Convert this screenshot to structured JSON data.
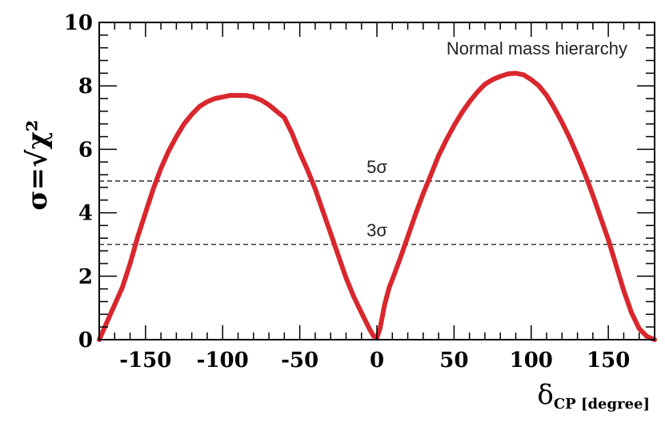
{
  "chart_data": {
    "type": "line",
    "annotation": "Normal mass hierarchy",
    "ylabel": "σ=√χ²",
    "xlabel": "δCP [degree]",
    "xlabel_main": "δ",
    "xlabel_sub": "CP [degree]",
    "xlim": [
      -180,
      180
    ],
    "ylim": [
      0,
      10
    ],
    "xticks": [
      -150,
      -100,
      -50,
      0,
      50,
      100,
      150
    ],
    "xtick_labels": [
      "-150",
      "-100",
      "-50",
      "0",
      "50",
      "100",
      "150"
    ],
    "yticks": [
      0,
      2,
      4,
      6,
      8,
      10
    ],
    "ytick_labels": [
      "0",
      "2",
      "4",
      "6",
      "8",
      "10"
    ],
    "reference_lines": [
      {
        "y": 5,
        "label": "5σ",
        "label_x": 0
      },
      {
        "y": 3,
        "label": "3σ",
        "label_x": 0
      }
    ],
    "series": [
      {
        "color": "#d8272d",
        "x": [
          -180,
          -175,
          -170,
          -165,
          -160,
          -155,
          -150,
          -145,
          -140,
          -135,
          -130,
          -125,
          -120,
          -115,
          -110,
          -105,
          -100,
          -95,
          -90,
          -85,
          -80,
          -75,
          -70,
          -65,
          -60,
          -55,
          -50,
          -45,
          -40,
          -35,
          -30,
          -25,
          -20,
          -15,
          -10,
          -5,
          -2,
          0,
          2,
          5,
          8,
          10,
          15,
          20,
          25,
          30,
          35,
          40,
          45,
          50,
          55,
          60,
          65,
          70,
          75,
          80,
          85,
          90,
          95,
          100,
          105,
          110,
          115,
          120,
          125,
          130,
          135,
          140,
          145,
          150,
          155,
          160,
          165,
          170,
          175,
          180
        ],
        "y": [
          0.0,
          0.55,
          1.1,
          1.65,
          2.4,
          3.25,
          4.0,
          4.75,
          5.4,
          5.95,
          6.4,
          6.8,
          7.1,
          7.35,
          7.5,
          7.6,
          7.65,
          7.7,
          7.7,
          7.7,
          7.65,
          7.55,
          7.4,
          7.2,
          7.0,
          6.5,
          5.9,
          5.35,
          4.75,
          4.05,
          3.35,
          2.65,
          1.95,
          1.35,
          0.85,
          0.35,
          0.1,
          0.05,
          0.35,
          1.1,
          1.65,
          1.9,
          2.55,
          3.25,
          3.95,
          4.6,
          5.2,
          5.8,
          6.3,
          6.75,
          7.15,
          7.5,
          7.8,
          8.05,
          8.2,
          8.3,
          8.38,
          8.4,
          8.35,
          8.2,
          8.0,
          7.7,
          7.3,
          6.85,
          6.35,
          5.8,
          5.2,
          4.55,
          3.85,
          3.15,
          2.35,
          1.55,
          0.85,
          0.35,
          0.1,
          0.0
        ]
      }
    ]
  }
}
